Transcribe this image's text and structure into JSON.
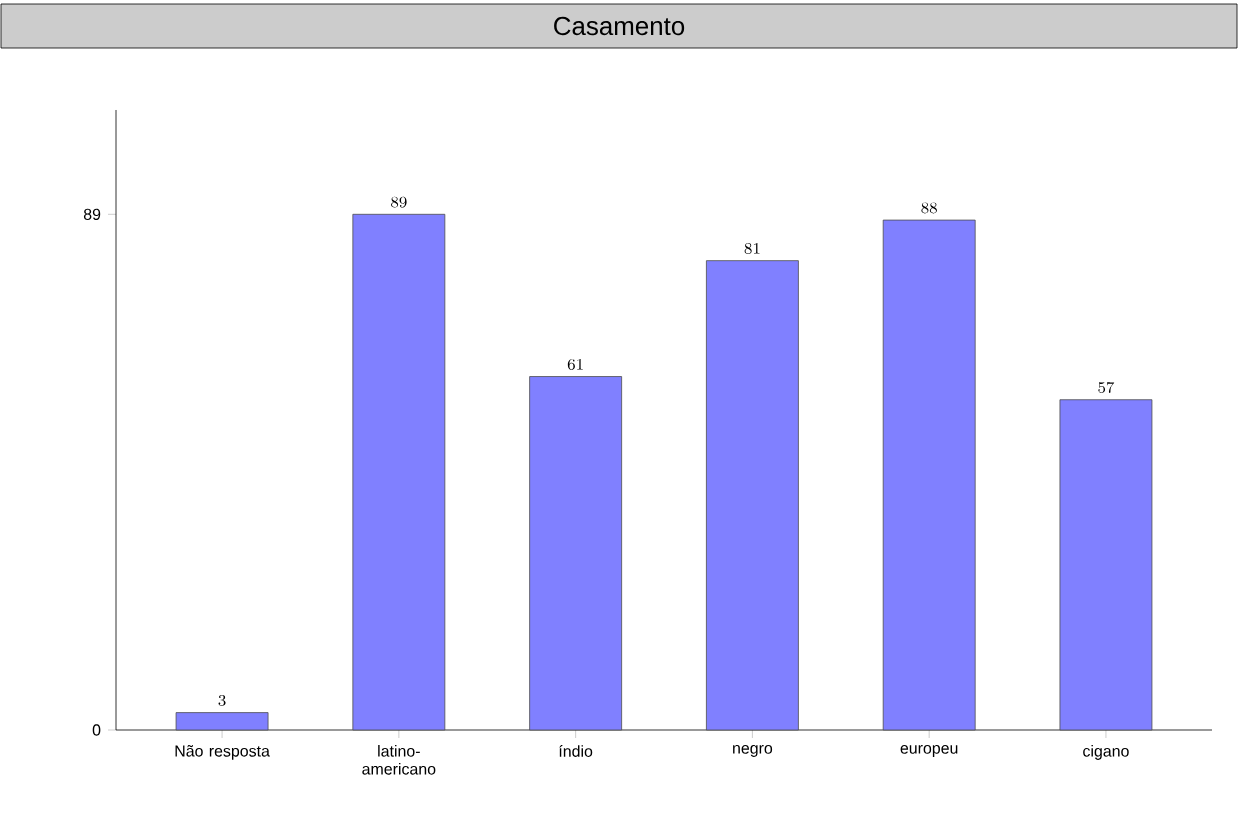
{
  "chart_data": {
    "type": "bar",
    "title": "Casamento",
    "categories": [
      "Não resposta",
      "latino-americano",
      "índio",
      "negro",
      "europeu",
      "cigano"
    ],
    "values": [
      3,
      89,
      61,
      81,
      88,
      57
    ],
    "color": "#8080ff",
    "ylim": [
      0,
      107
    ],
    "yticks": [
      0,
      89
    ],
    "data_labels": true,
    "grid": false
  }
}
